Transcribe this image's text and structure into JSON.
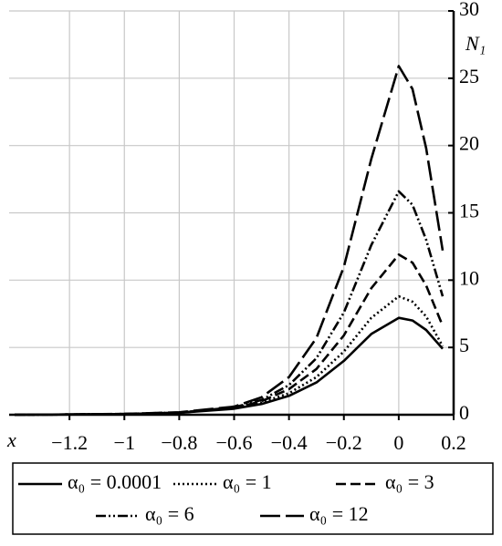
{
  "chart_data": {
    "type": "line",
    "x_label": "x",
    "y_label": "N₁",
    "x": [
      -1.4,
      -1.2,
      -1,
      -0.8,
      -0.6,
      -0.5,
      -0.4,
      -0.3,
      -0.2,
      -0.1,
      0,
      0.05,
      0.1,
      0.16
    ],
    "series": [
      {
        "name": "α₀ = 0.0001",
        "color": "#000000",
        "dash": "solid",
        "values": [
          0,
          0.02,
          0.05,
          0.15,
          0.45,
          0.8,
          1.4,
          2.4,
          4.0,
          6.0,
          7.2,
          7.0,
          6.3,
          4.9
        ]
      },
      {
        "name": "α₀ = 1",
        "color": "#000000",
        "dash": "dotted",
        "values": [
          0,
          0.02,
          0.05,
          0.15,
          0.5,
          0.9,
          1.6,
          2.8,
          4.7,
          7.2,
          8.8,
          8.4,
          7.3,
          5.1
        ]
      },
      {
        "name": "α₀ = 3",
        "color": "#000000",
        "dash": "dashed",
        "values": [
          0,
          0.02,
          0.05,
          0.15,
          0.5,
          1.0,
          1.9,
          3.4,
          5.9,
          9.4,
          11.9,
          11.3,
          9.6,
          6.6
        ]
      },
      {
        "name": "α₀ = 6",
        "color": "#000000",
        "dash": "dash-dot-dot",
        "values": [
          0,
          0.02,
          0.06,
          0.16,
          0.55,
          1.1,
          2.2,
          4.2,
          7.6,
          12.6,
          16.6,
          15.6,
          13.0,
          8.8
        ]
      },
      {
        "name": "α₀ = 12",
        "color": "#000000",
        "dash": "long-dash",
        "values": [
          0,
          0.02,
          0.06,
          0.18,
          0.6,
          1.3,
          2.8,
          5.7,
          11.0,
          19.0,
          25.9,
          24.2,
          19.8,
          12.2
        ]
      }
    ],
    "xlim": [
      -1.42,
      0.2
    ],
    "ylim": [
      0,
      30
    ],
    "xticks": [
      {
        "value": -1.2,
        "label": "−1.2"
      },
      {
        "value": -1,
        "label": "−1"
      },
      {
        "value": -0.8,
        "label": "−0.8"
      },
      {
        "value": -0.6,
        "label": "−0.6"
      },
      {
        "value": -0.4,
        "label": "−0.4"
      },
      {
        "value": -0.2,
        "label": "−0.2"
      },
      0,
      0.2
    ],
    "yticks": [
      0,
      5,
      10,
      15,
      20,
      25,
      30
    ],
    "grid": true,
    "legend": "bottom"
  }
}
